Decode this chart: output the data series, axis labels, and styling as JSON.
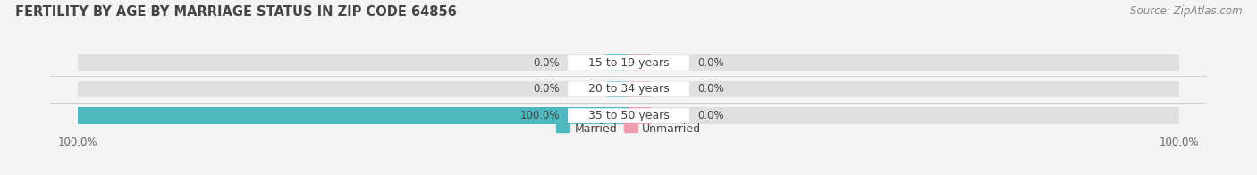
{
  "title": "FERTILITY BY AGE BY MARRIAGE STATUS IN ZIP CODE 64856",
  "source": "Source: ZipAtlas.com",
  "categories": [
    "15 to 19 years",
    "20 to 34 years",
    "35 to 50 years"
  ],
  "married_pct": [
    0.0,
    0.0,
    100.0
  ],
  "unmarried_pct": [
    0.0,
    0.0,
    0.0
  ],
  "married_color": "#4db8c0",
  "unmarried_color": "#f09cb0",
  "bar_bg_color": "#e0e0e0",
  "bar_bg_left_color": "#e8e8e8",
  "title_fontsize": 10.5,
  "source_fontsize": 8.5,
  "label_fontsize": 8.5,
  "category_fontsize": 9,
  "tick_fontsize": 8.5,
  "legend_fontsize": 9,
  "fig_bg_color": "#f4f4f4",
  "axes_bg_color": "#f4f4f4",
  "white": "#ffffff",
  "text_color": "#444444",
  "source_color": "#888888",
  "tick_color": "#666666"
}
